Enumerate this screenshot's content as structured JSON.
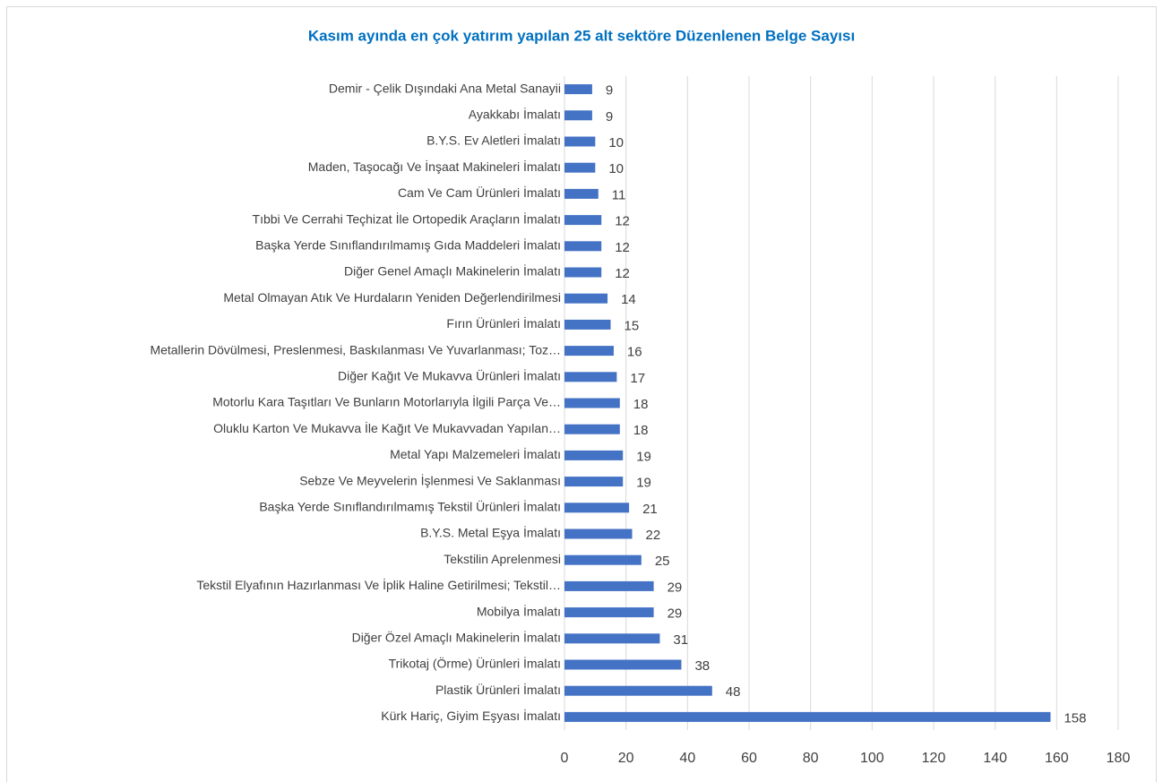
{
  "chart_data": {
    "type": "bar",
    "orientation": "horizontal",
    "title": "Kasım ayında en çok yatırım yapılan 25 alt sektöre Düzenlenen Belge Sayısı",
    "categories": [
      "Demir - Çelik Dışındaki Ana Metal Sanayii",
      "Ayakkabı İmalatı",
      "B.Y.S. Ev Aletleri İmalatı",
      "Maden, Taşocağı Ve İnşaat Makineleri İmalatı",
      "Cam Ve Cam Ürünleri İmalatı",
      "Tıbbi Ve Cerrahi Teçhizat İle Ortopedik Araçların İmalatı",
      "Başka Yerde Sınıflandırılmamış Gıda Maddeleri İmalatı",
      "Diğer Genel Amaçlı Makinelerin İmalatı",
      "Metal Olmayan Atık Ve Hurdaların Yeniden Değerlendirilmesi",
      "Fırın Ürünleri İmalatı",
      "Metallerin Dövülmesi, Preslenmesi, Baskılanması Ve Yuvarlanması; Toz…",
      "Diğer Kağıt Ve Mukavva Ürünleri İmalatı",
      "Motorlu Kara Taşıtları Ve Bunların Motorlarıyla İlgili Parça Ve…",
      "Oluklu Karton Ve Mukavva İle Kağıt Ve Mukavvadan Yapılan…",
      "Metal Yapı Malzemeleri İmalatı",
      "Sebze Ve Meyvelerin İşlenmesi Ve Saklanması",
      "Başka Yerde Sınıflandırılmamış Tekstil Ürünleri İmalatı",
      "B.Y.S. Metal Eşya İmalatı",
      "Tekstilin Aprelenmesi",
      "Tekstil Elyafının Hazırlanması Ve İplik Haline Getirilmesi; Tekstil…",
      "Mobilya İmalatı",
      "Diğer Özel Amaçlı Makinelerin İmalatı",
      "Trikotaj (Örme) Ürünleri İmalatı",
      "Plastik Ürünleri İmalatı",
      "Kürk Hariç, Giyim Eşyası İmalatı"
    ],
    "values": [
      9,
      9,
      10,
      10,
      11,
      12,
      12,
      12,
      14,
      15,
      16,
      17,
      18,
      18,
      19,
      19,
      21,
      22,
      25,
      29,
      29,
      31,
      38,
      48,
      158
    ],
    "color": "#4472c4",
    "xlim": [
      0,
      180
    ],
    "xticks": [
      0,
      20,
      40,
      60,
      80,
      100,
      120,
      140,
      160,
      180
    ],
    "grid": true
  }
}
